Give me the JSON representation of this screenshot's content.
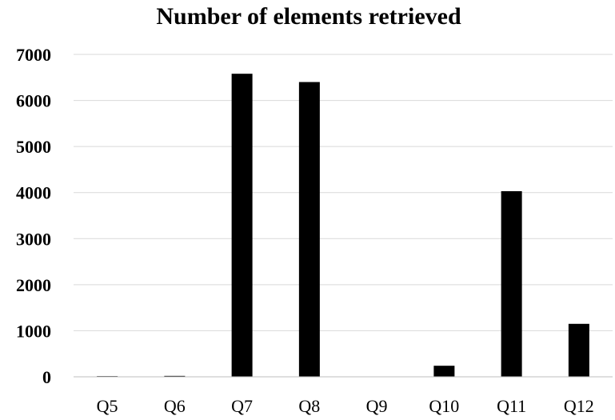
{
  "chart_data": {
    "type": "bar",
    "title": "Number of  elements retrieved",
    "xlabel": "",
    "ylabel": "",
    "categories": [
      "Q5",
      "Q6",
      "Q7",
      "Q8",
      "Q9",
      "Q10",
      "Q11",
      "Q12"
    ],
    "values": [
      15,
      20,
      6580,
      6400,
      0,
      240,
      4030,
      1150
    ],
    "ylim": [
      0,
      7000
    ],
    "yticks": [
      "0",
      "1000",
      "2000",
      "3000",
      "4000",
      "5000",
      "6000",
      "7000"
    ],
    "grid": true,
    "legend": "none",
    "bar_color": "#000000"
  }
}
